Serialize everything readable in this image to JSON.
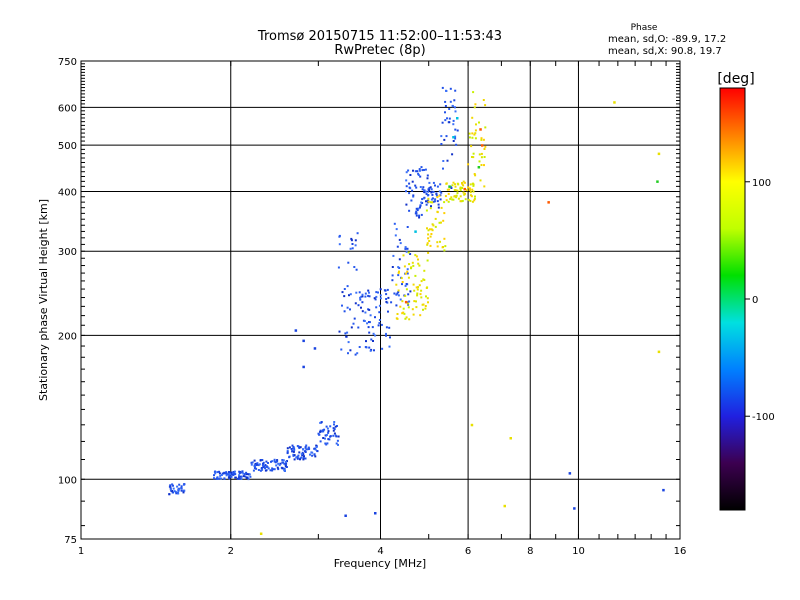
{
  "chart_data": {
    "type": "scatter",
    "title": "Tromsø 20150715 11:52:00–11:53:43",
    "subtitle": "RwPretec (8p)",
    "phase_box": {
      "title": "Phase",
      "line1": "mean, sd,O: -89.9, 17.2",
      "line2": "mean, sd,X:  90.8, 19.7"
    },
    "xlabel": "Frequency [MHz]",
    "ylabel": "Stationary phase Virtual Height [km]",
    "xscale": "log",
    "yscale": "log",
    "xlim": [
      1,
      16
    ],
    "ylim": [
      75,
      750
    ],
    "xticks": [
      1,
      2,
      4,
      6,
      8,
      10,
      16
    ],
    "xtick_labels": [
      "1",
      "2",
      "4",
      "6",
      "8",
      "10",
      "16"
    ],
    "yticks": [
      75,
      100,
      200,
      300,
      400,
      500,
      600,
      750
    ],
    "ytick_labels": [
      "75",
      "100",
      "200",
      "300",
      "400",
      "500",
      "600",
      "750"
    ],
    "grid": true,
    "colorbar": {
      "label": "[deg]",
      "range": [
        -180,
        180
      ],
      "ticks": [
        100,
        0,
        -100
      ],
      "tick_labels": [
        "100",
        "0",
        "-100"
      ],
      "colormap": [
        "#000000",
        "#3c0050",
        "#2020e0",
        "#0080ff",
        "#00e0e0",
        "#00e000",
        "#c0ff00",
        "#ffff00",
        "#ff8000",
        "#ff0000"
      ]
    },
    "series": [
      {
        "phase_deg": -95,
        "color": "#1a44e0",
        "segments": [
          {
            "x": [
              1.5,
              1.62
            ],
            "y": [
              93,
              98
            ]
          },
          {
            "x": [
              1.85,
              2.2
            ],
            "y": [
              100,
              104
            ]
          },
          {
            "x": [
              2.2,
              2.6
            ],
            "y": [
              104,
              110
            ]
          },
          {
            "x": [
              2.6,
              3.0
            ],
            "y": [
              110,
              118
            ]
          },
          {
            "x": [
              3.0,
              3.3
            ],
            "y": [
              118,
              132
            ]
          },
          {
            "x": [
              3.3,
              3.6
            ],
            "y": [
              180,
              330
            ]
          },
          {
            "x": [
              3.6,
              4.2
            ],
            "y": [
              185,
              250
            ]
          },
          {
            "x": [
              4.2,
              4.6
            ],
            "y": [
              230,
              350
            ]
          },
          {
            "x": [
              4.5,
              5.0
            ],
            "y": [
              350,
              450
            ]
          },
          {
            "x": [
              4.8,
              5.3
            ],
            "y": [
              370,
              420
            ]
          },
          {
            "x": [
              5.3,
              5.75
            ],
            "y": [
              400,
              660
            ]
          }
        ],
        "points": [
          {
            "x": 2.7,
            "y": 205
          },
          {
            "x": 2.8,
            "y": 195
          },
          {
            "x": 2.8,
            "y": 172
          },
          {
            "x": 2.95,
            "y": 188
          },
          {
            "x": 3.4,
            "y": 84
          },
          {
            "x": 3.9,
            "y": 85
          },
          {
            "x": 9.6,
            "y": 103
          },
          {
            "x": 9.8,
            "y": 87
          },
          {
            "x": 14.8,
            "y": 95
          }
        ]
      },
      {
        "phase_deg": 95,
        "color": "#e8e000",
        "segments": [
          {
            "x": [
              4.3,
              5.0
            ],
            "y": [
              215,
              300
            ]
          },
          {
            "x": [
              4.95,
              5.4
            ],
            "y": [
              300,
              395
            ]
          },
          {
            "x": [
              5.4,
              6.2
            ],
            "y": [
              380,
              420
            ]
          },
          {
            "x": [
              6.0,
              6.5
            ],
            "y": [
              410,
              660
            ]
          }
        ],
        "points": [
          {
            "x": 2.3,
            "y": 77
          },
          {
            "x": 6.1,
            "y": 130
          },
          {
            "x": 7.1,
            "y": 88
          },
          {
            "x": 7.3,
            "y": 122
          },
          {
            "x": 11.8,
            "y": 615
          },
          {
            "x": 14.5,
            "y": 480
          },
          {
            "x": 14.5,
            "y": 185
          }
        ]
      },
      {
        "phase_deg": 150,
        "color": "#ff5a00",
        "points": [
          {
            "x": 6.35,
            "y": 540
          },
          {
            "x": 6.4,
            "y": 500
          },
          {
            "x": 5.9,
            "y": 405
          },
          {
            "x": 4.5,
            "y": 235
          },
          {
            "x": 8.7,
            "y": 380
          }
        ]
      },
      {
        "phase_deg": 20,
        "color": "#22cc22",
        "points": [
          {
            "x": 14.4,
            "y": 420
          },
          {
            "x": 6.3,
            "y": 450
          },
          {
            "x": 5.5,
            "y": 410
          }
        ]
      },
      {
        "phase_deg": -40,
        "color": "#00c0e0",
        "points": [
          {
            "x": 5.7,
            "y": 570
          },
          {
            "x": 5.6,
            "y": 520
          },
          {
            "x": 4.7,
            "y": 330
          }
        ]
      }
    ]
  }
}
